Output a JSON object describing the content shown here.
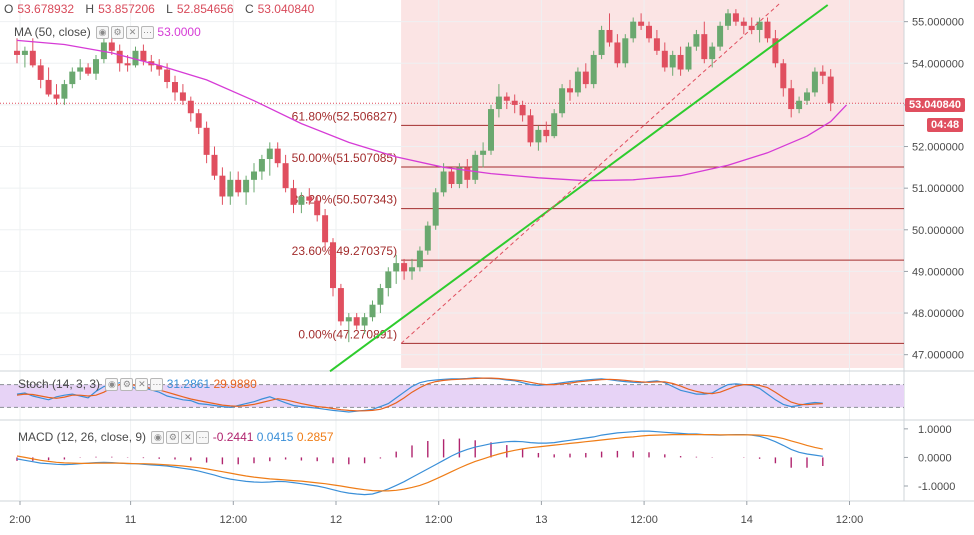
{
  "header": {
    "ohlc": [
      {
        "label": "O",
        "value": "53.678932"
      },
      {
        "label": "H",
        "value": "53.857206"
      },
      {
        "label": "L",
        "value": "52.854656"
      },
      {
        "label": "C",
        "value": "53.040840"
      }
    ],
    "ma_label": "MA (50, close)",
    "ma_value": "53.0000",
    "stoch_label": "Stoch (14, 3, 3)",
    "stoch_k": "31.2861",
    "stoch_d": "29.9880",
    "macd_label": "MACD (12, 26, close, 9)",
    "macd_hist": "-0.2441",
    "macd_line": "0.0415",
    "macd_signal": "0.2857"
  },
  "price_tag": {
    "value": "53.040840",
    "countdown": "04:48"
  },
  "colors": {
    "up": "#6aa86f",
    "down": "#e04f5f",
    "ma": "#d63bd6",
    "stoch_k": "#3a8fd8",
    "stoch_d": "#e8631f",
    "stoch_band": "#e7d3f6",
    "macd_line": "#3a8fd8",
    "macd_signal": "#ef7d17",
    "macd_hist": "#b0246e",
    "fib": "#a32d2d",
    "trend": "#2ecc2e",
    "shade": "#fbe4e4"
  },
  "icons": [
    "eye-icon",
    "settings-icon",
    "close-icon",
    "more-icon"
  ],
  "chart_data": [
    {
      "type": "candlestick",
      "title": "",
      "ylim": [
        46.8,
        55.4
      ],
      "y_ticks": [
        "55.000000",
        "54.000000",
        "53.000000",
        "52.000000",
        "51.000000",
        "50.000000",
        "49.000000",
        "48.000000",
        "47.000000"
      ],
      "x_ticks": [
        "2:00",
        "11",
        "12:00",
        "12",
        "12:00",
        "13",
        "12:00",
        "14",
        "12:00"
      ],
      "candles": [
        [
          54.3,
          54.6,
          54.0,
          54.2
        ],
        [
          54.2,
          54.4,
          53.9,
          54.3
        ],
        [
          54.3,
          54.6,
          53.9,
          53.95
        ],
        [
          53.95,
          54.1,
          53.4,
          53.6
        ],
        [
          53.6,
          53.9,
          53.2,
          53.25
        ],
        [
          53.25,
          53.5,
          53.0,
          53.15
        ],
        [
          53.15,
          53.6,
          53.0,
          53.5
        ],
        [
          53.5,
          53.9,
          53.4,
          53.8
        ],
        [
          53.8,
          54.1,
          53.6,
          53.9
        ],
        [
          53.9,
          54.0,
          53.7,
          53.75
        ],
        [
          53.75,
          54.2,
          53.6,
          54.1
        ],
        [
          54.1,
          54.6,
          54.0,
          54.5
        ],
        [
          54.5,
          54.7,
          54.2,
          54.3
        ],
        [
          54.3,
          54.45,
          53.8,
          54.0
        ],
        [
          54.0,
          54.2,
          53.8,
          53.95
        ],
        [
          53.95,
          54.4,
          53.9,
          54.3
        ],
        [
          54.3,
          54.45,
          53.95,
          54.05
        ],
        [
          54.05,
          54.2,
          53.8,
          53.95
        ],
        [
          53.95,
          54.1,
          53.7,
          53.85
        ],
        [
          53.85,
          54.0,
          53.4,
          53.55
        ],
        [
          53.55,
          53.7,
          53.1,
          53.3
        ],
        [
          53.3,
          53.5,
          53.0,
          53.1
        ],
        [
          53.1,
          53.2,
          52.6,
          52.8
        ],
        [
          52.8,
          52.9,
          52.3,
          52.45
        ],
        [
          52.45,
          52.6,
          51.6,
          51.8
        ],
        [
          51.8,
          52.0,
          51.2,
          51.3
        ],
        [
          51.3,
          51.5,
          50.6,
          50.8
        ],
        [
          50.8,
          51.4,
          50.6,
          51.2
        ],
        [
          51.2,
          51.4,
          50.8,
          50.9
        ],
        [
          50.9,
          51.3,
          50.6,
          51.2
        ],
        [
          51.2,
          51.6,
          50.9,
          51.4
        ],
        [
          51.4,
          51.8,
          51.2,
          51.7
        ],
        [
          51.7,
          52.1,
          51.3,
          51.95
        ],
        [
          51.95,
          52.1,
          51.5,
          51.6
        ],
        [
          51.6,
          51.8,
          50.9,
          51.0
        ],
        [
          51.0,
          51.2,
          50.4,
          50.6
        ],
        [
          50.6,
          50.9,
          50.4,
          50.8
        ],
        [
          50.8,
          51.0,
          50.6,
          50.7
        ],
        [
          50.7,
          50.8,
          50.2,
          50.35
        ],
        [
          50.35,
          50.5,
          49.5,
          49.7
        ],
        [
          49.7,
          49.8,
          48.4,
          48.6
        ],
        [
          48.6,
          48.7,
          47.7,
          47.8
        ],
        [
          47.8,
          48.0,
          47.3,
          47.9
        ],
        [
          47.9,
          48.0,
          47.6,
          47.7
        ],
        [
          47.7,
          48.0,
          47.5,
          47.9
        ],
        [
          47.9,
          48.3,
          47.8,
          48.2
        ],
        [
          48.2,
          48.7,
          48.0,
          48.6
        ],
        [
          48.6,
          49.1,
          48.4,
          49.0
        ],
        [
          49.0,
          49.4,
          48.7,
          49.2
        ],
        [
          49.2,
          49.3,
          48.8,
          49.0
        ],
        [
          49.0,
          49.3,
          48.8,
          49.1
        ],
        [
          49.1,
          49.6,
          49.0,
          49.5
        ],
        [
          49.5,
          50.2,
          49.4,
          50.1
        ],
        [
          50.1,
          51.0,
          50.0,
          50.9
        ],
        [
          50.9,
          51.6,
          50.8,
          51.4
        ],
        [
          51.4,
          51.5,
          51.0,
          51.1
        ],
        [
          51.1,
          51.6,
          51.0,
          51.5
        ],
        [
          51.5,
          51.7,
          51.0,
          51.2
        ],
        [
          51.2,
          51.9,
          51.1,
          51.8
        ],
        [
          51.8,
          52.1,
          51.5,
          51.9
        ],
        [
          51.9,
          53.0,
          51.8,
          52.9
        ],
        [
          52.9,
          53.5,
          52.7,
          53.2
        ],
        [
          53.2,
          53.3,
          52.9,
          53.1
        ],
        [
          53.1,
          53.25,
          52.8,
          53.0
        ],
        [
          53.0,
          53.1,
          52.6,
          52.75
        ],
        [
          52.75,
          52.9,
          52.0,
          52.1
        ],
        [
          52.1,
          52.5,
          51.9,
          52.4
        ],
        [
          52.4,
          52.6,
          52.1,
          52.25
        ],
        [
          52.25,
          52.9,
          52.2,
          52.8
        ],
        [
          52.8,
          53.5,
          52.7,
          53.4
        ],
        [
          53.4,
          53.6,
          53.1,
          53.3
        ],
        [
          53.3,
          53.9,
          53.2,
          53.8
        ],
        [
          53.8,
          54.0,
          53.4,
          53.5
        ],
        [
          53.5,
          54.3,
          53.4,
          54.2
        ],
        [
          54.2,
          54.9,
          54.1,
          54.8
        ],
        [
          54.8,
          55.2,
          54.4,
          54.5
        ],
        [
          54.5,
          54.7,
          53.9,
          54.0
        ],
        [
          54.0,
          54.7,
          53.9,
          54.6
        ],
        [
          54.6,
          55.1,
          54.5,
          55.0
        ],
        [
          55.0,
          55.2,
          54.8,
          54.9
        ],
        [
          54.9,
          55.0,
          54.5,
          54.6
        ],
        [
          54.6,
          54.8,
          54.2,
          54.3
        ],
        [
          54.3,
          54.5,
          53.8,
          53.9
        ],
        [
          53.9,
          54.3,
          53.7,
          54.2
        ],
        [
          54.2,
          54.4,
          53.7,
          53.85
        ],
        [
          53.85,
          54.5,
          53.8,
          54.4
        ],
        [
          54.4,
          54.8,
          54.3,
          54.7
        ],
        [
          54.7,
          55.0,
          54.0,
          54.1
        ],
        [
          54.1,
          54.5,
          53.9,
          54.4
        ],
        [
          54.4,
          55.0,
          54.3,
          54.9
        ],
        [
          54.9,
          55.3,
          54.8,
          55.2
        ],
        [
          55.2,
          55.3,
          54.9,
          55.0
        ],
        [
          55.0,
          55.1,
          54.7,
          54.9
        ],
        [
          54.9,
          55.1,
          54.7,
          54.8
        ],
        [
          54.8,
          55.1,
          54.5,
          55.0
        ],
        [
          55.0,
          55.1,
          54.5,
          54.6
        ],
        [
          54.6,
          54.8,
          53.9,
          54.0
        ],
        [
          54.0,
          54.1,
          53.2,
          53.4
        ],
        [
          53.4,
          53.6,
          52.7,
          52.9
        ],
        [
          52.9,
          53.2,
          52.8,
          53.1
        ],
        [
          53.1,
          53.4,
          53.0,
          53.3
        ],
        [
          53.3,
          53.9,
          53.2,
          53.8
        ],
        [
          53.8,
          53.95,
          53.5,
          53.7
        ],
        [
          53.68,
          53.86,
          52.85,
          53.04
        ]
      ],
      "ma_points": [
        [
          0,
          54.55
        ],
        [
          6,
          54.45
        ],
        [
          12,
          54.25
        ],
        [
          18,
          53.95
        ],
        [
          24,
          53.6
        ],
        [
          30,
          53.1
        ],
        [
          36,
          52.55
        ],
        [
          42,
          52.1
        ],
        [
          48,
          51.75
        ],
        [
          54,
          51.5
        ],
        [
          60,
          51.35
        ],
        [
          66,
          51.25
        ],
        [
          72,
          51.18
        ],
        [
          78,
          51.2
        ],
        [
          84,
          51.3
        ],
        [
          90,
          51.55
        ],
        [
          95,
          51.85
        ],
        [
          100,
          52.25
        ],
        [
          103,
          52.6
        ],
        [
          105,
          53.0
        ]
      ],
      "fibonacci": [
        {
          "label": "61.80%(52.506827)",
          "value": 52.506827
        },
        {
          "label": "50.00%(51.507085)",
          "value": 51.507085
        },
        {
          "label": "38.20%(50.507343)",
          "value": 50.507343
        },
        {
          "label": "23.60%(49.270375)",
          "value": 49.270375
        },
        {
          "label": "0.00%(47.270891)",
          "value": 47.270891
        }
      ],
      "trendline": {
        "start": [
          40,
          46.6
        ],
        "end": [
          103,
          55.4
        ]
      },
      "current_price": 53.04084
    },
    {
      "type": "line",
      "title": "Stoch",
      "ylim": [
        0,
        100
      ],
      "bands": [
        20,
        80
      ],
      "series": [
        {
          "name": "%K",
          "values": [
            55,
            58,
            50,
            45,
            40,
            48,
            52,
            55,
            50,
            45,
            62,
            75,
            80,
            85,
            78,
            70,
            72,
            66,
            60,
            50,
            45,
            40,
            38,
            30,
            28,
            25,
            22,
            20,
            25,
            30,
            35,
            42,
            48,
            40,
            32,
            25,
            22,
            20,
            18,
            15,
            12,
            10,
            8,
            10,
            12,
            15,
            22,
            30,
            45,
            60,
            75,
            85,
            90,
            92,
            94,
            95,
            95,
            96,
            98,
            97,
            96,
            95,
            92,
            90,
            85,
            80,
            78,
            80,
            82,
            85,
            88,
            90,
            92,
            94,
            95,
            93,
            90,
            88,
            86,
            85,
            88,
            90,
            85,
            75,
            65,
            60,
            55,
            55,
            58,
            70,
            80,
            82,
            80,
            78,
            70,
            55,
            40,
            28,
            22,
            25,
            30,
            33,
            31
          ]
        },
        {
          "name": "%D",
          "values": [
            52,
            55,
            54,
            50,
            46,
            44,
            47,
            52,
            52,
            50,
            52,
            60,
            72,
            80,
            82,
            78,
            74,
            70,
            66,
            60,
            54,
            48,
            42,
            38,
            34,
            30,
            26,
            24,
            23,
            25,
            28,
            33,
            38,
            43,
            40,
            35,
            30,
            26,
            22,
            20,
            17,
            14,
            12,
            11,
            11,
            12,
            15,
            22,
            32,
            45,
            60,
            72,
            82,
            88,
            91,
            93,
            94,
            95,
            96,
            97,
            97,
            96,
            94,
            92,
            90,
            86,
            82,
            80,
            80,
            82,
            84,
            87,
            89,
            91,
            93,
            94,
            93,
            91,
            89,
            87,
            86,
            87,
            87,
            83,
            76,
            68,
            62,
            58,
            56,
            60,
            68,
            76,
            80,
            80,
            78,
            72,
            60,
            46,
            34,
            28,
            27,
            29,
            30
          ]
        }
      ]
    },
    {
      "type": "line",
      "title": "MACD",
      "ylim": [
        -1.35,
        1.1
      ],
      "y_ticks": [
        "1.0000",
        "0.0000",
        "-1.0000"
      ],
      "series": [
        {
          "name": "MACD",
          "values": [
            -0.05,
            -0.1,
            -0.15,
            -0.2,
            -0.22,
            -0.24,
            -0.25,
            -0.24,
            -0.22,
            -0.2,
            -0.18,
            -0.17,
            -0.18,
            -0.2,
            -0.22,
            -0.22,
            -0.24,
            -0.26,
            -0.28,
            -0.3,
            -0.34,
            -0.38,
            -0.42,
            -0.48,
            -0.55,
            -0.62,
            -0.7,
            -0.76,
            -0.8,
            -0.84,
            -0.86,
            -0.87,
            -0.86,
            -0.84,
            -0.85,
            -0.88,
            -0.92,
            -0.96,
            -1.0,
            -1.06,
            -1.13,
            -1.2,
            -1.25,
            -1.28,
            -1.3,
            -1.28,
            -1.2,
            -1.1,
            -0.98,
            -0.85,
            -0.7,
            -0.55,
            -0.4,
            -0.25,
            -0.1,
            0.05,
            0.18,
            0.28,
            0.36,
            0.42,
            0.48,
            0.52,
            0.55,
            0.56,
            0.55,
            0.52,
            0.5,
            0.5,
            0.52,
            0.56,
            0.6,
            0.64,
            0.68,
            0.72,
            0.78,
            0.82,
            0.86,
            0.88,
            0.9,
            0.92,
            0.92,
            0.9,
            0.88,
            0.86,
            0.84,
            0.82,
            0.82,
            0.8,
            0.79,
            0.78,
            0.79,
            0.8,
            0.8,
            0.78,
            0.74,
            0.66,
            0.55,
            0.42,
            0.28,
            0.18,
            0.12,
            0.08,
            0.04
          ]
        },
        {
          "name": "Signal",
          "values": [
            0.05,
            0.0,
            -0.05,
            -0.1,
            -0.14,
            -0.17,
            -0.19,
            -0.2,
            -0.21,
            -0.21,
            -0.2,
            -0.2,
            -0.2,
            -0.2,
            -0.21,
            -0.22,
            -0.22,
            -0.23,
            -0.24,
            -0.26,
            -0.28,
            -0.3,
            -0.33,
            -0.36,
            -0.4,
            -0.45,
            -0.5,
            -0.55,
            -0.6,
            -0.65,
            -0.69,
            -0.72,
            -0.75,
            -0.77,
            -0.79,
            -0.81,
            -0.83,
            -0.86,
            -0.89,
            -0.92,
            -0.96,
            -1.0,
            -1.05,
            -1.09,
            -1.13,
            -1.16,
            -1.17,
            -1.17,
            -1.15,
            -1.11,
            -1.05,
            -0.98,
            -0.88,
            -0.76,
            -0.63,
            -0.5,
            -0.37,
            -0.25,
            -0.14,
            -0.05,
            0.04,
            0.12,
            0.19,
            0.25,
            0.3,
            0.34,
            0.37,
            0.4,
            0.43,
            0.46,
            0.49,
            0.52,
            0.55,
            0.58,
            0.61,
            0.64,
            0.67,
            0.7,
            0.72,
            0.75,
            0.77,
            0.78,
            0.79,
            0.8,
            0.8,
            0.8,
            0.8,
            0.8,
            0.8,
            0.79,
            0.79,
            0.79,
            0.79,
            0.79,
            0.78,
            0.76,
            0.72,
            0.66,
            0.58,
            0.5,
            0.42,
            0.35,
            0.29
          ]
        }
      ]
    }
  ]
}
